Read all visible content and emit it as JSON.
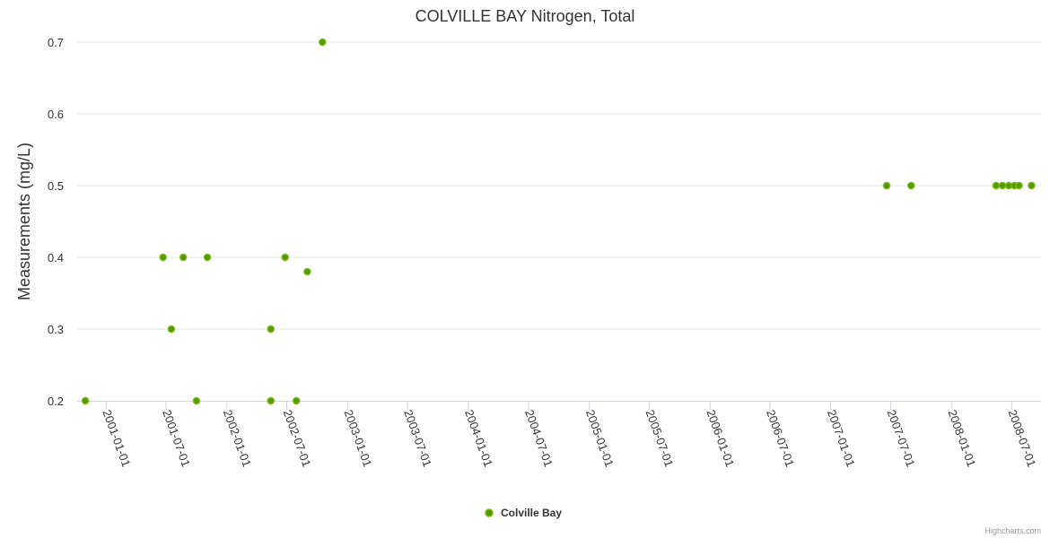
{
  "chart_data": {
    "type": "scatter",
    "title": "COLVILLE BAY Nitrogen, Total",
    "xlabel": "",
    "ylabel": "Measurements (mg/L)",
    "ylim": [
      0.2,
      0.7
    ],
    "yticks": [
      0.2,
      0.3,
      0.4,
      0.5,
      0.6,
      0.7
    ],
    "xticks": [
      "2001-01-01",
      "2001-07-01",
      "2002-01-01",
      "2002-07-01",
      "2003-01-01",
      "2003-07-01",
      "2004-01-01",
      "2004-07-01",
      "2005-01-01",
      "2005-07-01",
      "2006-01-01",
      "2006-07-01",
      "2007-01-01",
      "2007-07-01",
      "2008-01-01",
      "2008-07-01"
    ],
    "grid": true,
    "legend_position": "bottom-center",
    "series": [
      {
        "name": "Colville Bay",
        "color": "#4f9a00",
        "border": "#7cb80f",
        "points": [
          [
            "2000-10-30",
            0.2
          ],
          [
            "2001-06-22",
            0.4
          ],
          [
            "2001-07-17",
            0.3
          ],
          [
            "2001-08-22",
            0.4
          ],
          [
            "2001-10-01",
            0.2
          ],
          [
            "2001-11-03",
            0.4
          ],
          [
            "2002-05-14",
            0.3
          ],
          [
            "2002-05-14",
            0.2
          ],
          [
            "2002-06-26",
            0.4
          ],
          [
            "2002-07-30",
            0.2
          ],
          [
            "2002-09-01",
            0.38
          ],
          [
            "2002-10-17",
            0.7
          ],
          [
            "2007-06-19",
            0.5
          ],
          [
            "2007-09-01",
            0.5
          ],
          [
            "2008-05-15",
            0.5
          ],
          [
            "2008-06-03",
            0.5
          ],
          [
            "2008-06-22",
            0.5
          ],
          [
            "2008-07-09",
            0.5
          ],
          [
            "2008-07-23",
            0.5
          ],
          [
            "2008-08-30",
            0.5
          ]
        ]
      }
    ]
  },
  "credits": "Highcharts.com"
}
